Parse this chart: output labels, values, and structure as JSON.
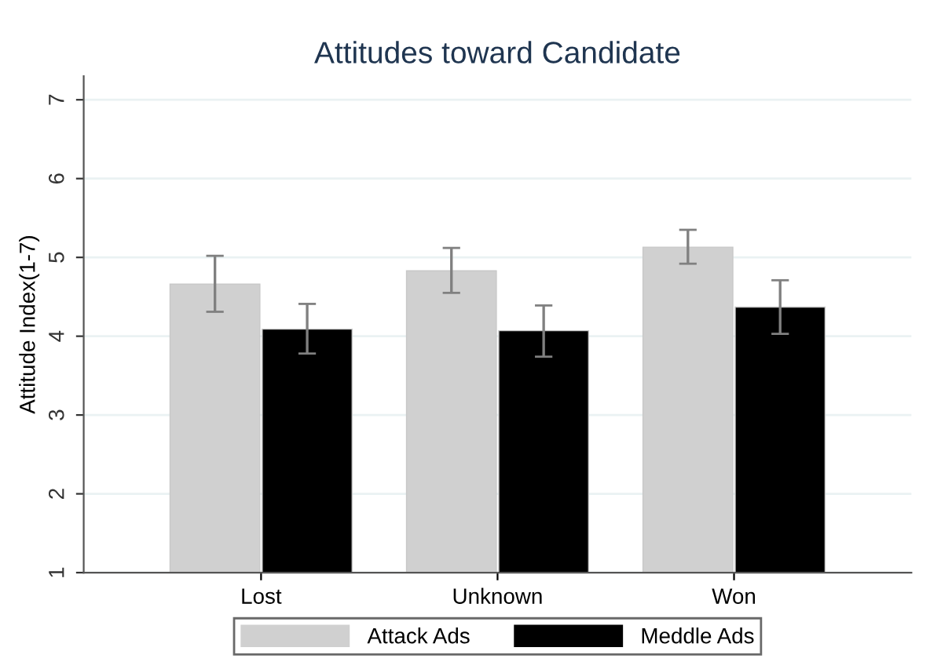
{
  "chart_data": {
    "type": "bar",
    "title": "Attitudes toward Candidate",
    "ylabel": "Attitude Index(1-7)",
    "categories": [
      "Lost",
      "Unknown",
      "Won"
    ],
    "series": [
      {
        "name": "Attack Ads",
        "color": "#d0d0d0",
        "values": [
          4.66,
          4.83,
          5.13
        ],
        "errors": [
          [
            4.31,
            5.02
          ],
          [
            4.55,
            5.12
          ],
          [
            4.92,
            5.35
          ]
        ]
      },
      {
        "name": "Meddle Ads",
        "color": "#000000",
        "values": [
          4.09,
          4.07,
          4.37
        ],
        "errors": [
          [
            3.78,
            4.41
          ],
          [
            3.74,
            4.39
          ],
          [
            4.03,
            4.71
          ]
        ]
      }
    ],
    "ylim": [
      1,
      7.3
    ],
    "yticks": [
      1,
      2,
      3,
      4,
      5,
      6,
      7
    ],
    "grid": "y",
    "legend": "bottom"
  }
}
